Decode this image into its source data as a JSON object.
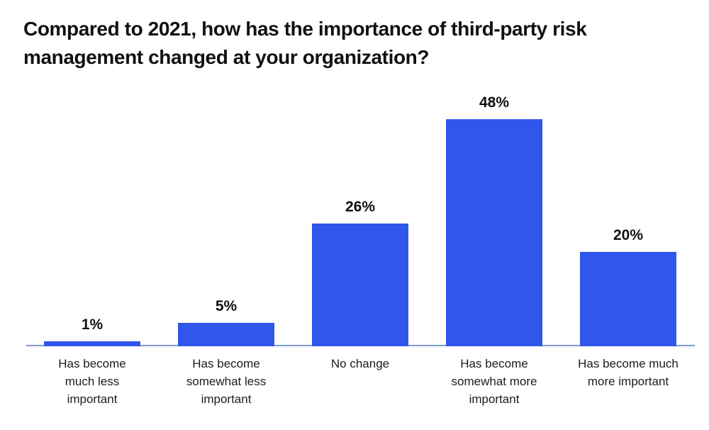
{
  "display": {
    "title": "Compared to 2021, how has the importance of third-party risk\nmanagement changed at your organization?"
  },
  "chart_data": {
    "type": "bar",
    "title": "Compared to 2021, how has the importance of third-party risk management changed at your organization?",
    "categories": [
      "Has become much less important",
      "Has become somewhat less important",
      "No change",
      "Has become somewhat more important",
      "Has become much more important"
    ],
    "category_lines": [
      [
        "Has become",
        "much less",
        "important"
      ],
      [
        "Has become",
        "somewhat less",
        "important"
      ],
      [
        "No change"
      ],
      [
        "Has become",
        "somewhat more",
        "important"
      ],
      [
        "Has become much",
        "more important"
      ]
    ],
    "values": [
      1,
      5,
      26,
      48,
      20
    ],
    "value_labels": [
      "1%",
      "5%",
      "26%",
      "48%",
      "20%"
    ],
    "unit": "%",
    "ylim": [
      0,
      50
    ],
    "grid": false,
    "legend": "none",
    "colors": {
      "bar": "#3056EB",
      "axis_line": "#7F9BD7",
      "title_text": "#111111",
      "label_text": "#1C1C1C",
      "background": "#FFFFFF"
    }
  }
}
